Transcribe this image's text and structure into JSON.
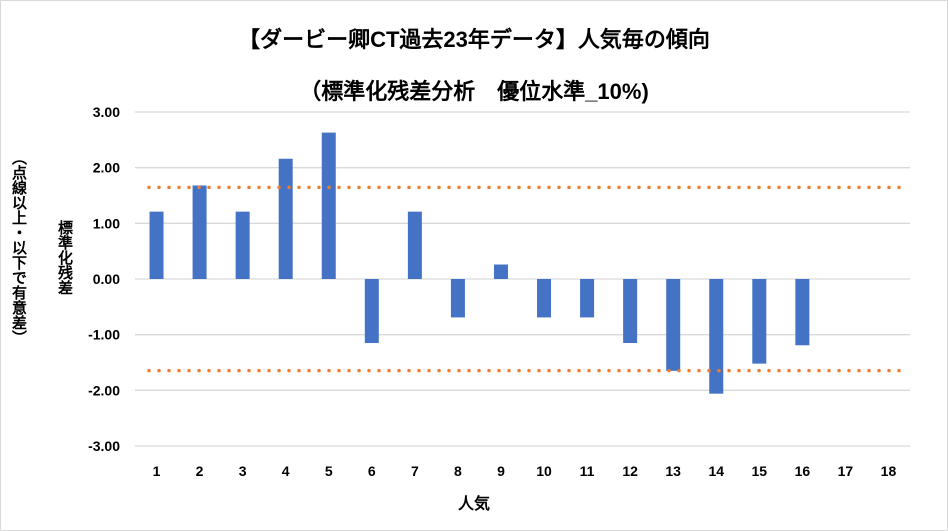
{
  "chart_data": {
    "type": "bar",
    "title": "【ダービー卿CT過去23年データ】人気毎の傾向",
    "subtitle": "（標準化残差分析　優位水準_10%)",
    "xlabel": "人気",
    "ylabel": "標準化残差",
    "ylabel_note": "（点線以上・以下で有意差）",
    "categories": [
      "1",
      "2",
      "3",
      "4",
      "5",
      "6",
      "7",
      "8",
      "9",
      "10",
      "11",
      "12",
      "13",
      "14",
      "15",
      "16",
      "17",
      "18"
    ],
    "values": [
      1.21,
      1.68,
      1.21,
      2.16,
      2.63,
      -1.15,
      1.21,
      -0.69,
      0.26,
      -0.69,
      -0.69,
      -1.15,
      -1.65,
      -2.06,
      -1.52,
      -1.19,
      0,
      0
    ],
    "ylim": [
      -3,
      3
    ],
    "yticks": [
      "3.00",
      "2.00",
      "1.00",
      "0.00",
      "-1.00",
      "-2.00",
      "-3.00"
    ],
    "ytick_values": [
      3,
      2,
      1,
      0,
      -1,
      -2,
      -3
    ],
    "thresholds": [
      1.645,
      -1.645
    ],
    "grid": true,
    "colors": {
      "bar": "#4472c4",
      "threshold": "#ed7d31",
      "grid": "#d9d9d9"
    }
  }
}
